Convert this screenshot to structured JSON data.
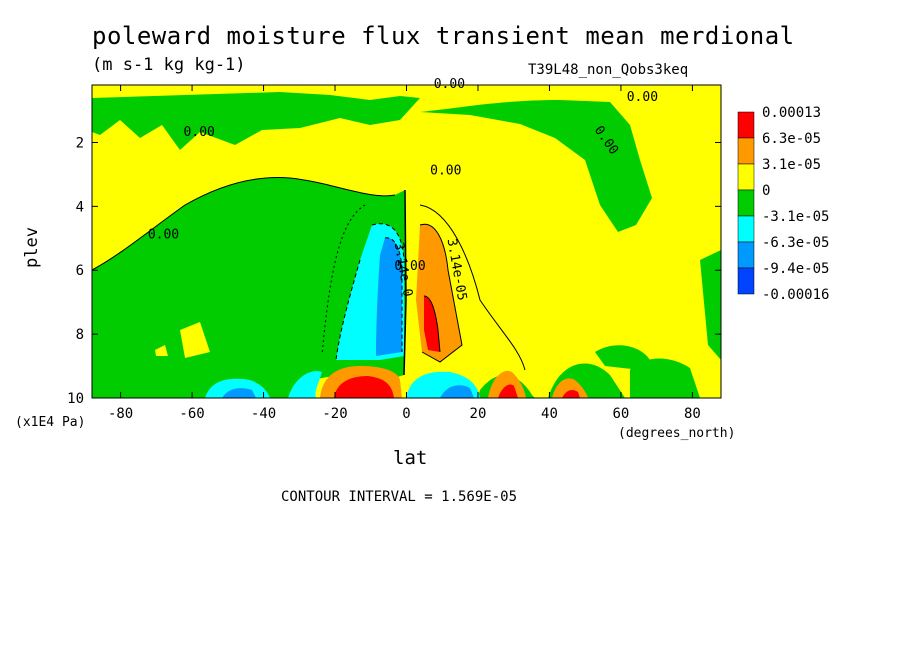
{
  "chart_data": {
    "type": "contour",
    "title": "poleward moisture flux transient mean merdional",
    "subtitle": "(m s-1 kg kg-1)",
    "run_label": "T39L48_non_Qobs3keq",
    "xlabel": "lat",
    "xunits": "(degrees_north)",
    "ylabel": "plev",
    "yunits": "(x1E4 Pa)",
    "xlim": [
      -88,
      88
    ],
    "ylim": [
      10,
      0.2
    ],
    "x_ticks": [
      "-80",
      "-60",
      "-40",
      "-20",
      "0",
      "20",
      "40",
      "60",
      "80"
    ],
    "y_ticks": [
      "2",
      "4",
      "6",
      "8",
      "10"
    ],
    "contour_interval": "CONTOUR INTERVAL = 1.569E-05",
    "legend": {
      "placement": "right",
      "labels": [
        "0.00013",
        "6.3e-05",
        "3.1e-05",
        "0",
        "-3.1e-05",
        "-6.3e-05",
        "-9.4e-05",
        "-0.00016"
      ],
      "colors": [
        "#ff0000",
        "#ff9900",
        "#ffff00",
        "#00cc00",
        "#00ffff",
        "#0099ff",
        "#0044ff"
      ]
    },
    "contour_labels": [
      {
        "text": "0.00",
        "lat": -58,
        "plev": 1.8
      },
      {
        "text": "0.00",
        "lat": 12,
        "plev": 0.3
      },
      {
        "text": "0.00",
        "lat": 66,
        "plev": 0.7
      },
      {
        "text": "0.00",
        "lat": 55,
        "plev": 2.0
      },
      {
        "text": "0.00",
        "lat": 11,
        "plev": 3.0
      },
      {
        "text": "0.00",
        "lat": -68,
        "plev": 5.0
      },
      {
        "text": "0.00",
        "lat": 1,
        "plev": 6.0
      },
      {
        "text": "3.14e-0",
        "lat": -2,
        "plev": 6.0
      },
      {
        "text": "3.14e-05",
        "lat": 13,
        "plev": 6.0
      }
    ]
  }
}
